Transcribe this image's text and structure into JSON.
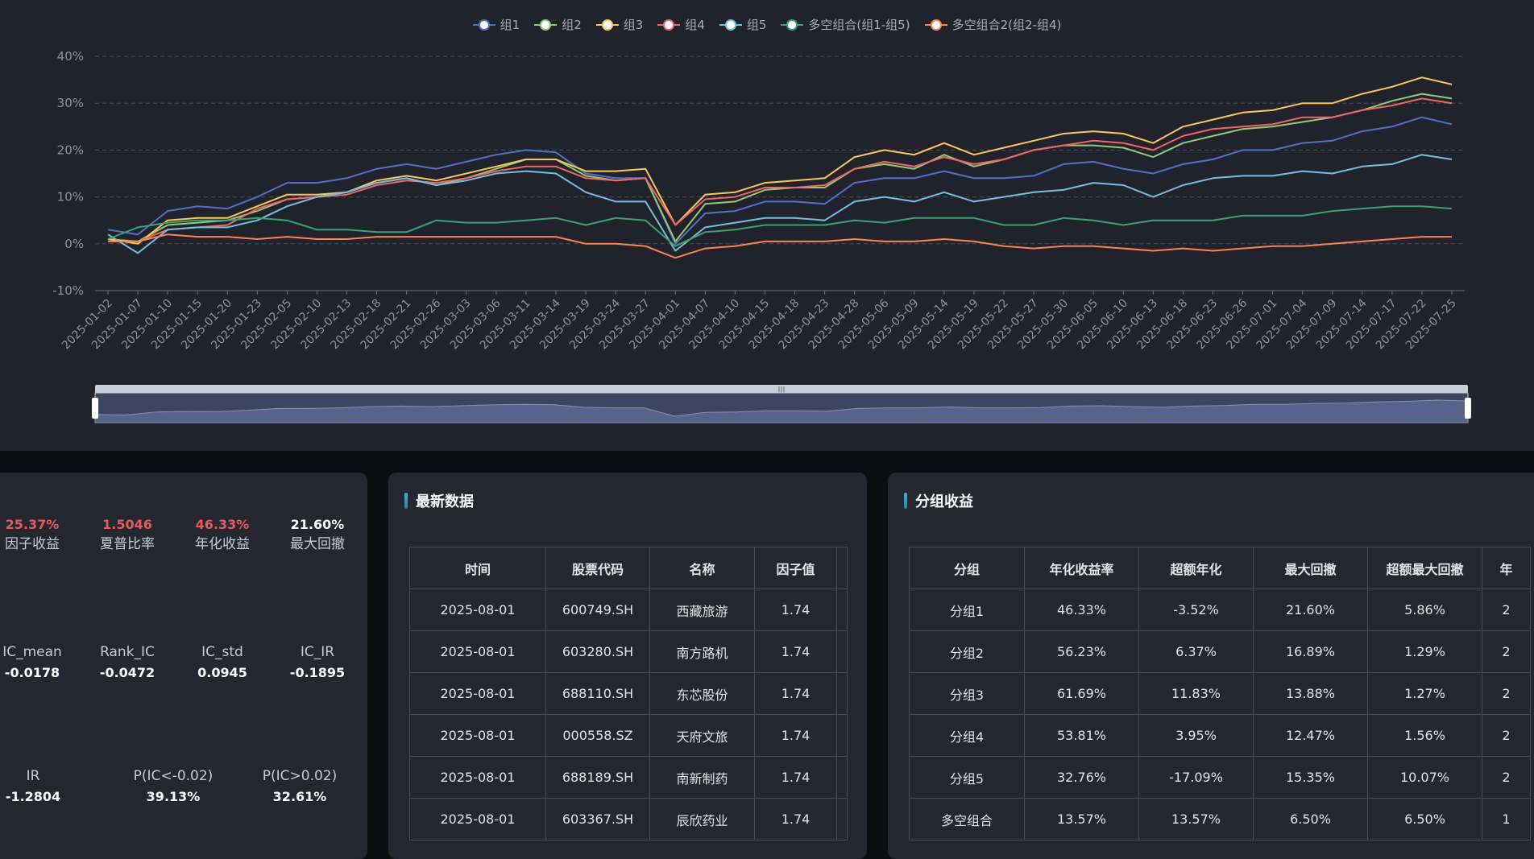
{
  "chart_data": {
    "type": "line",
    "ylim": [
      -10,
      40
    ],
    "yticks": [
      "40%",
      "30%",
      "20%",
      "10%",
      "0%",
      "-10%"
    ],
    "ytick_values": [
      40,
      30,
      20,
      10,
      0,
      -10
    ],
    "grid": true,
    "legend_position": "top-center",
    "x": [
      "2025-01-02",
      "2025-01-07",
      "2025-01-10",
      "2025-01-15",
      "2025-01-20",
      "2025-01-23",
      "2025-02-05",
      "2025-02-10",
      "2025-02-13",
      "2025-02-18",
      "2025-02-21",
      "2025-02-26",
      "2025-03-03",
      "2025-03-06",
      "2025-03-11",
      "2025-03-14",
      "2025-03-19",
      "2025-03-24",
      "2025-03-27",
      "2025-04-01",
      "2025-04-07",
      "2025-04-10",
      "2025-04-15",
      "2025-04-18",
      "2025-04-23",
      "2025-04-28",
      "2025-05-06",
      "2025-05-09",
      "2025-05-14",
      "2025-05-19",
      "2025-05-22",
      "2025-05-27",
      "2025-05-30",
      "2025-06-05",
      "2025-06-10",
      "2025-06-13",
      "2025-06-18",
      "2025-06-23",
      "2025-06-26",
      "2025-07-01",
      "2025-07-04",
      "2025-07-09",
      "2025-07-14",
      "2025-07-17",
      "2025-07-22",
      "2025-07-25"
    ],
    "series": [
      {
        "name": "组1",
        "color": "#5470c6",
        "values": [
          3,
          2,
          7,
          8,
          7.5,
          10,
          13,
          13,
          14,
          16,
          17,
          16,
          17.5,
          19,
          20,
          19.5,
          15,
          14,
          14,
          0,
          6.5,
          7,
          9,
          9,
          8.5,
          13,
          14,
          14,
          15.5,
          14,
          14,
          14.5,
          17,
          17.5,
          16,
          15,
          17,
          18,
          20,
          20,
          21.5,
          22,
          24,
          25,
          27,
          25.5
        ]
      },
      {
        "name": "组2",
        "color": "#91cc75",
        "values": [
          1,
          0.5,
          4,
          4.5,
          5,
          7,
          9.5,
          10,
          11,
          13,
          14,
          12.5,
          14,
          16,
          18,
          18,
          14.5,
          13.5,
          14,
          0.5,
          8.5,
          9,
          11.5,
          12,
          12,
          16,
          17,
          16,
          19,
          16.5,
          18,
          20,
          21,
          21,
          20.5,
          18.5,
          21.5,
          23,
          24.5,
          25,
          26,
          27,
          28.5,
          30.5,
          32,
          31
        ]
      },
      {
        "name": "组3",
        "color": "#fac858",
        "values": [
          1,
          0,
          5,
          5.5,
          5.5,
          8,
          10.5,
          10.5,
          11,
          13.5,
          14.5,
          13.5,
          15,
          16.5,
          18,
          18,
          15.5,
          15.5,
          16,
          4,
          10.5,
          11,
          13,
          13.5,
          14,
          18.5,
          20,
          19,
          21.5,
          19,
          20.5,
          22,
          23.5,
          24,
          23.5,
          21.5,
          25,
          26.5,
          28,
          28.5,
          30,
          30,
          32,
          33.5,
          35.5,
          34
        ]
      },
      {
        "name": "组4",
        "color": "#ee6666",
        "values": [
          0.5,
          0.5,
          3,
          3.5,
          4,
          7.5,
          9.5,
          10,
          10.5,
          12.5,
          13.5,
          13,
          14,
          15.5,
          16.5,
          16.5,
          14,
          13.5,
          14,
          4,
          9.5,
          10,
          12,
          12,
          12.5,
          16,
          17.5,
          16.5,
          18.5,
          17,
          18,
          20,
          21,
          22,
          21.5,
          20,
          23,
          24.5,
          25,
          25.5,
          27,
          27,
          28.5,
          29.5,
          31,
          30
        ]
      },
      {
        "name": "组5",
        "color": "#73c0de",
        "values": [
          2,
          -2,
          3,
          3.5,
          3.5,
          5,
          8,
          10,
          11,
          13,
          14,
          12.5,
          13.5,
          15,
          15.5,
          15,
          11,
          9,
          9,
          -1.5,
          3.5,
          4.5,
          5.5,
          5.5,
          5,
          9,
          10,
          9,
          11,
          9,
          10,
          11,
          11.5,
          13,
          12.5,
          10,
          12.5,
          14,
          14.5,
          14.5,
          15.5,
          15,
          16.5,
          17,
          19,
          18
        ]
      },
      {
        "name": "多空组合(组1-组5)",
        "color": "#3ba272",
        "values": [
          1,
          3.5,
          4.5,
          5,
          5,
          5.5,
          5,
          3,
          3,
          2.5,
          2.5,
          5,
          4.5,
          4.5,
          5,
          5.5,
          4,
          5.5,
          5,
          -0.5,
          2.5,
          3,
          4,
          4,
          4,
          5,
          4.5,
          5.5,
          5.5,
          5.5,
          4,
          4,
          5.5,
          5,
          4,
          5,
          5,
          5,
          6,
          6,
          6,
          7,
          7.5,
          8,
          8,
          7.5
        ]
      },
      {
        "name": "多空组合2(组2-组4)",
        "color": "#fc8452",
        "values": [
          0.5,
          0.5,
          2,
          1.5,
          1.5,
          1,
          1.5,
          1,
          1,
          1.5,
          1.5,
          1.5,
          1.5,
          1.5,
          1.5,
          1.5,
          0,
          0,
          -0.5,
          -3,
          -1,
          -0.5,
          0.5,
          0.5,
          0.5,
          1,
          0.5,
          0.5,
          1,
          0.5,
          -0.5,
          -1,
          -0.5,
          -0.5,
          -1,
          -1.5,
          -1,
          -1.5,
          -1,
          -0.5,
          -0.5,
          0,
          0.5,
          1,
          1.5,
          1.5
        ]
      }
    ]
  },
  "stats": {
    "row1": [
      {
        "value": "25.37%",
        "label": "因子收益",
        "color": "#e85a5a"
      },
      {
        "value": "1.5046",
        "label": "夏普比率",
        "color": "#e85a5a"
      },
      {
        "value": "46.33%",
        "label": "年化收益",
        "color": "#e85a5a"
      },
      {
        "value": "21.60%",
        "label": "最大回撤",
        "color": "#ffffff"
      }
    ],
    "row2": [
      {
        "value": "-0.0178",
        "label": "IC_mean"
      },
      {
        "value": "-0.0472",
        "label": "Rank_IC"
      },
      {
        "value": "0.0945",
        "label": "IC_std"
      },
      {
        "value": "-0.1895",
        "label": "IC_IR"
      }
    ],
    "row3": [
      {
        "value": "-1.2804",
        "label": "IR"
      },
      {
        "value": "39.13%",
        "label": "P(IC<-0.02)"
      },
      {
        "value": "32.61%",
        "label": "P(IC>0.02)"
      }
    ]
  },
  "latest": {
    "title": "最新数据",
    "headers": [
      "时间",
      "股票代码",
      "名称",
      "因子值"
    ],
    "rows": [
      [
        "2025-08-01",
        "600749.SH",
        "西藏旅游",
        "1.74"
      ],
      [
        "2025-08-01",
        "603280.SH",
        "南方路机",
        "1.74"
      ],
      [
        "2025-08-01",
        "688110.SH",
        "东芯股份",
        "1.74"
      ],
      [
        "2025-08-01",
        "000558.SZ",
        "天府文旅",
        "1.74"
      ],
      [
        "2025-08-01",
        "688189.SH",
        "南新制药",
        "1.74"
      ],
      [
        "2025-08-01",
        "603367.SH",
        "辰欣药业",
        "1.74"
      ]
    ]
  },
  "group": {
    "title": "分组收益",
    "headers": [
      "分组",
      "年化收益率",
      "超额年化",
      "最大回撤",
      "超额最大回撤",
      "年"
    ],
    "rows": [
      [
        "分组1",
        "46.33%",
        "-3.52%",
        "21.60%",
        "5.86%",
        "2"
      ],
      [
        "分组2",
        "56.23%",
        "6.37%",
        "16.89%",
        "1.29%",
        "2"
      ],
      [
        "分组3",
        "61.69%",
        "11.83%",
        "13.88%",
        "1.27%",
        "2"
      ],
      [
        "分组4",
        "53.81%",
        "3.95%",
        "12.47%",
        "1.56%",
        "2"
      ],
      [
        "分组5",
        "32.76%",
        "-17.09%",
        "15.35%",
        "10.07%",
        "2"
      ],
      [
        "多空组合",
        "13.57%",
        "13.57%",
        "6.50%",
        "6.50%",
        "1"
      ]
    ]
  }
}
